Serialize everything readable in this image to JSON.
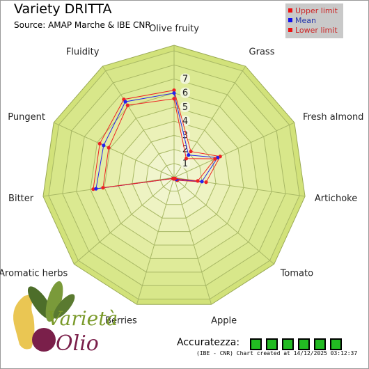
{
  "header": {
    "title": "Variety DRITTA",
    "subtitle": "Source: AMAP Marche & IBE CNR"
  },
  "legend": [
    {
      "label": "Upper limit",
      "color": "#ee1111"
    },
    {
      "label": "Mean",
      "color": "#1111ee"
    },
    {
      "label": "Lower limit",
      "color": "#ee1111"
    }
  ],
  "chart_data": {
    "type": "radar",
    "axes": [
      "Olive fruity",
      "Grass",
      "Fresh almond",
      "Artichoke",
      "Tomato",
      "Apple",
      "Berries",
      "Aromatic herbs",
      "Bitter",
      "Pungent",
      "Fluidity"
    ],
    "tick_labels": [
      "1",
      "2",
      "3",
      "4",
      "5",
      "6",
      "7"
    ],
    "rlim": [
      0,
      9
    ],
    "series": [
      {
        "name": "Upper limit",
        "color": "#ee2222",
        "values": [
          6.2,
          2.2,
          3.6,
          2.3,
          0.3,
          0.1,
          0.1,
          0.1,
          5.8,
          5.8,
          6.6
        ]
      },
      {
        "name": "Mean",
        "color": "#2222ee",
        "values": [
          6.0,
          1.9,
          3.4,
          2.0,
          0.2,
          0.1,
          0.1,
          0.1,
          5.6,
          5.5,
          6.4
        ]
      },
      {
        "name": "Lower limit",
        "color": "#ee2222",
        "values": [
          5.6,
          1.6,
          3.2,
          1.7,
          0.1,
          0.1,
          0.1,
          0.1,
          5.1,
          5.1,
          6.1
        ]
      }
    ]
  },
  "accuracy": {
    "label": "Accuratezza:",
    "boxes": 6,
    "color": "#22bb22"
  },
  "footer": "(IBE - CNR) Chart created at 14/12/2025 03:12:37",
  "logo": {
    "line1": "Varietà",
    "line2": "Olio"
  }
}
